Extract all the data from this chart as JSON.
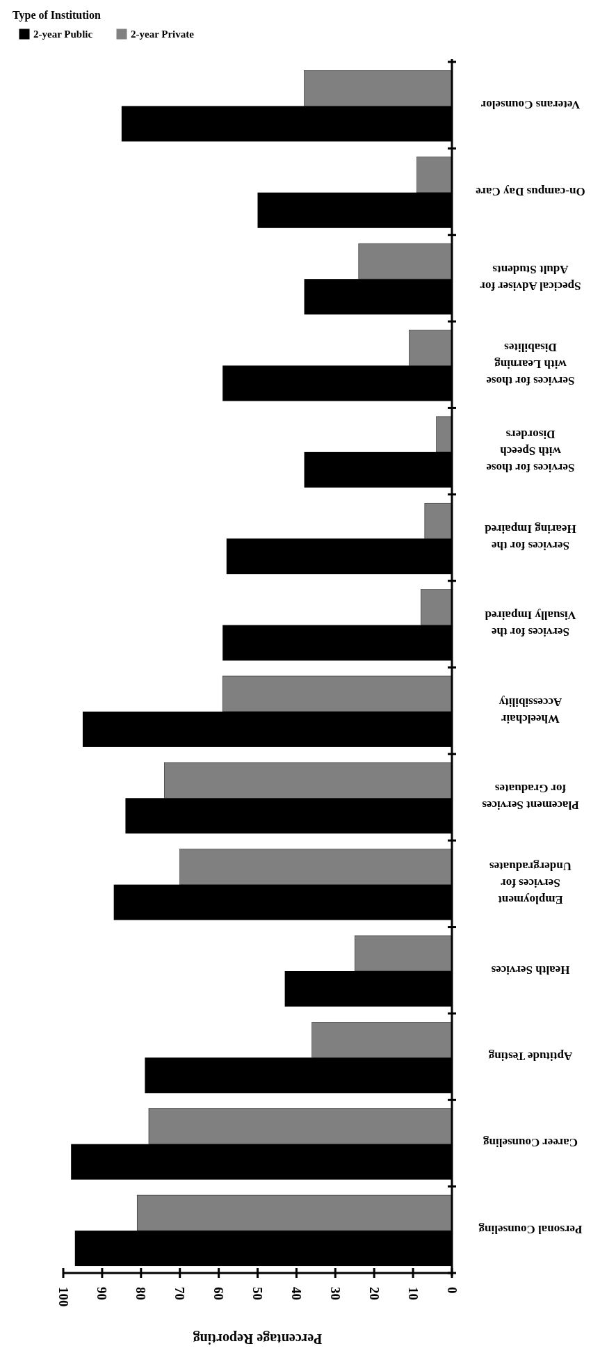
{
  "chart_data": {
    "type": "bar",
    "orientation": "horizontal",
    "xlabel": "Percentage Reporting",
    "legend_title": "Type of Institution",
    "legend": "top left",
    "categories": [
      "Veterans Counselor",
      "On-campus Day Care",
      "Specical Adviser for\nAdult Students",
      "Services for those\nwith Learning\nDisabilites",
      "Services for those\nwith Speech\nDisorders",
      "Services for the\nHearing Impaired",
      "Services for the\nVisually Impaired",
      "Wheelchair\nAccessibility",
      "Placement Services\nfor Graduates",
      "Employment\nServices for\nUndergraduates",
      "Health Services",
      "Aptitude Testing",
      "Career Counseling",
      "Personal Counseling"
    ],
    "series": [
      {
        "name": "2-year Public",
        "color": "#000000",
        "values": [
          85,
          50,
          38,
          59,
          38,
          58,
          59,
          95,
          84,
          87,
          43,
          79,
          98,
          97
        ]
      },
      {
        "name": "2-year Private",
        "color": "#808080",
        "values": [
          38,
          9,
          24,
          11,
          4,
          7,
          8,
          59,
          74,
          70,
          25,
          36,
          78,
          81
        ]
      }
    ],
    "xlim": [
      100,
      0
    ],
    "xticks": [
      100,
      90,
      80,
      70,
      60,
      50,
      40,
      30,
      20,
      10,
      0
    ]
  }
}
